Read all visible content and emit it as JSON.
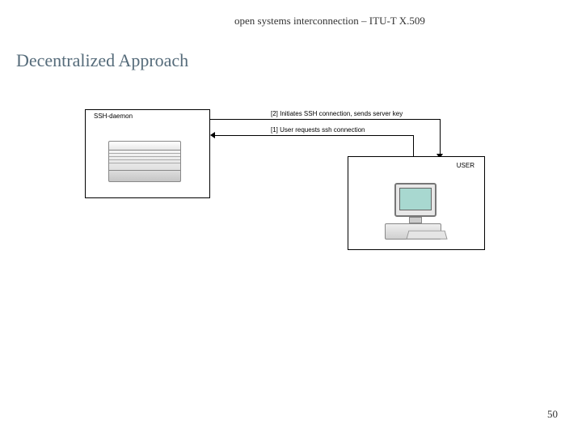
{
  "header": {
    "text": "open systems interconnection – ITU-T X.509"
  },
  "title": "Decentralized Approach",
  "page_number": "50",
  "diagram": {
    "server": {
      "label": "SSH-daemon"
    },
    "user": {
      "label": "USER"
    },
    "arrows": {
      "top_label": "[2] Initiates SSH connection, sends server key",
      "bottom_label": "[1] User requests ssh connection"
    },
    "colors": {
      "background": "#ffffff",
      "title_color": "#556b7a",
      "border": "#000000",
      "monitor_screen": "#a8d8d0"
    }
  }
}
